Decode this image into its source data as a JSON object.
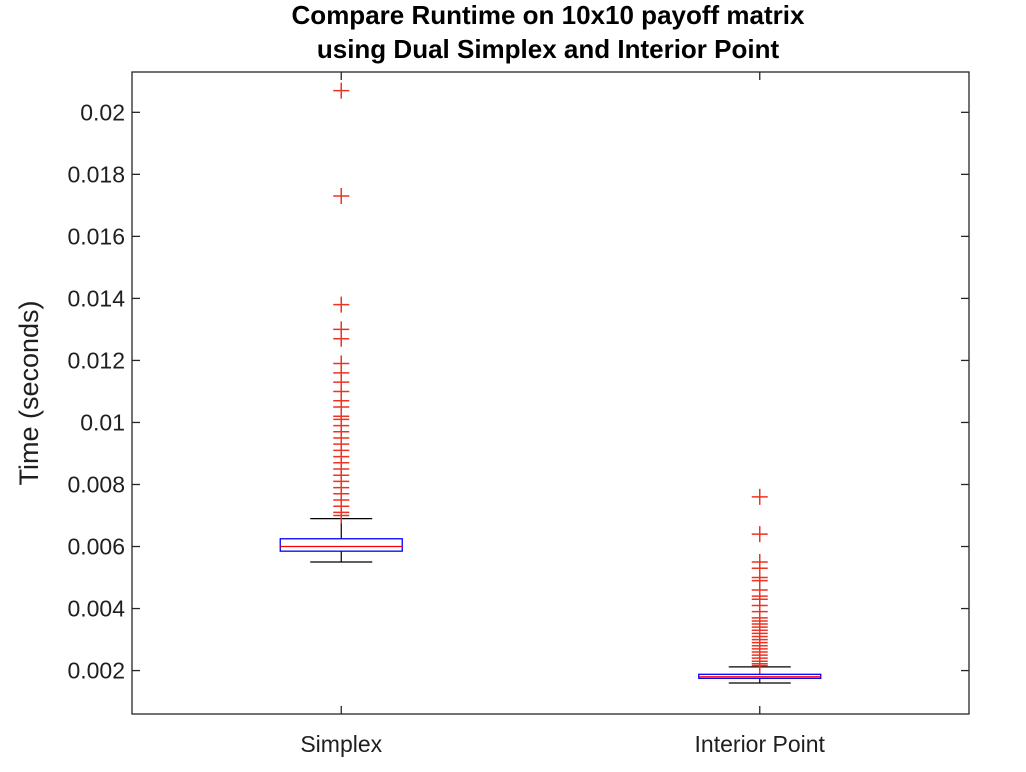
{
  "chart_data": {
    "type": "box",
    "title": [
      "Compare Runtime on 10x10 payoff matrix",
      "using Dual Simplex and Interior Point"
    ],
    "xlabel": "",
    "ylabel": "Time (seconds)",
    "ylim": [
      0.0006,
      0.0213
    ],
    "yticks": [
      0.002,
      0.004,
      0.006,
      0.008,
      0.01,
      0.012,
      0.014,
      0.016,
      0.018,
      0.02
    ],
    "ytick_labels": [
      "0.002",
      "0.004",
      "0.006",
      "0.008",
      "0.01",
      "0.012",
      "0.014",
      "0.016",
      "0.018",
      "0.02"
    ],
    "categories": [
      "Simplex",
      "Interior Point"
    ],
    "series": [
      {
        "median": 0.006,
        "q1": 0.00585,
        "q3": 0.00625,
        "whisker_low": 0.0055,
        "whisker_high": 0.0069,
        "outliers": [
          0.0207,
          0.0173,
          0.0138,
          0.013,
          0.0127,
          0.0119,
          0.0116,
          0.0113,
          0.011,
          0.0107,
          0.0105,
          0.0102,
          0.0101,
          0.0099,
          0.0097,
          0.0095,
          0.0093,
          0.0091,
          0.0089,
          0.0087,
          0.0085,
          0.0083,
          0.0081,
          0.0079,
          0.0077,
          0.0075,
          0.0073,
          0.0071,
          0.007
        ]
      },
      {
        "median": 0.0018,
        "q1": 0.00175,
        "q3": 0.00188,
        "whisker_low": 0.0016,
        "whisker_high": 0.00212,
        "outliers": [
          0.0076,
          0.0064,
          0.0055,
          0.0053,
          0.005,
          0.0049,
          0.0046,
          0.0044,
          0.0043,
          0.0041,
          0.0039,
          0.0037,
          0.0036,
          0.0035,
          0.0034,
          0.0033,
          0.0032,
          0.0031,
          0.003,
          0.0029,
          0.0028,
          0.0027,
          0.0026,
          0.0025,
          0.0024,
          0.0023,
          0.00222,
          0.00216
        ]
      }
    ],
    "grid": false,
    "colors": {
      "box": "#0000ff",
      "median": "#ff0000",
      "whisker": "#000000",
      "outlier": "#ee3322",
      "axes": "#262626"
    }
  }
}
